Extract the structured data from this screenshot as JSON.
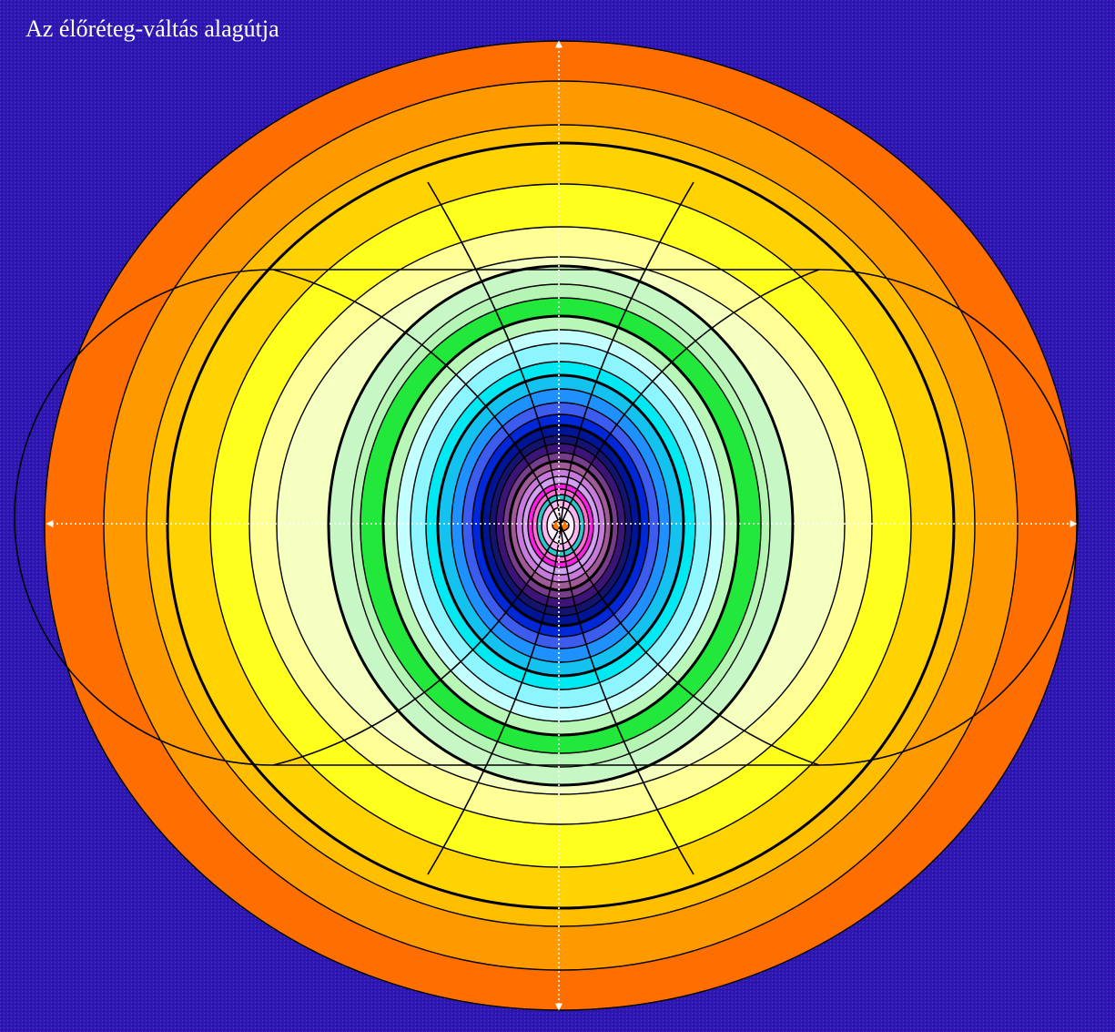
{
  "title": "Az élőréteg-váltás alagútja",
  "colors": {
    "background": "#2e18b4",
    "outline": "#000000",
    "axis": "#ffffff"
  },
  "rings": [
    {
      "name": "orange-outer",
      "color": "#ff6e00"
    },
    {
      "name": "orange",
      "color": "#ff9900"
    },
    {
      "name": "gold",
      "color": "#ffbe00"
    },
    {
      "name": "amber",
      "color": "#ffd200"
    },
    {
      "name": "yellow",
      "color": "#ffff1e"
    },
    {
      "name": "light-yellow",
      "color": "#ffff96"
    },
    {
      "name": "pale-yellow",
      "color": "#f5ffc0"
    },
    {
      "name": "pale-green",
      "color": "#c8f7c6"
    },
    {
      "name": "mint",
      "color": "#b4f5b4"
    },
    {
      "name": "green",
      "color": "#22e83c"
    },
    {
      "name": "light-green",
      "color": "#b9f7b9"
    },
    {
      "name": "pale-cyan",
      "color": "#c4ffff"
    },
    {
      "name": "light-cyan",
      "color": "#8cf5ff"
    },
    {
      "name": "cyan",
      "color": "#00e8f2"
    },
    {
      "name": "sky-blue",
      "color": "#14c2f0"
    },
    {
      "name": "blue",
      "color": "#1e90ff"
    },
    {
      "name": "royal-blue",
      "color": "#3c5cf0"
    },
    {
      "name": "deep-blue",
      "color": "#0028d8"
    },
    {
      "name": "dark-blue",
      "color": "#001496"
    },
    {
      "name": "navy",
      "color": "#14146e"
    },
    {
      "name": "indigo",
      "color": "#3c1478"
    },
    {
      "name": "plum",
      "color": "#783c8c"
    },
    {
      "name": "mauve",
      "color": "#a05a96"
    },
    {
      "name": "violet",
      "color": "#c87adc"
    },
    {
      "name": "lavender",
      "color": "#d2a0f0"
    },
    {
      "name": "magenta",
      "color": "#ff1ee6"
    },
    {
      "name": "pink",
      "color": "#ff6ed2"
    },
    {
      "name": "teal-ring",
      "color": "#28c8c8"
    },
    {
      "name": "light-pink",
      "color": "#ffb4f0"
    },
    {
      "name": "white-core",
      "color": "#fff0ff"
    }
  ],
  "core": {
    "color": "#ff7800"
  }
}
